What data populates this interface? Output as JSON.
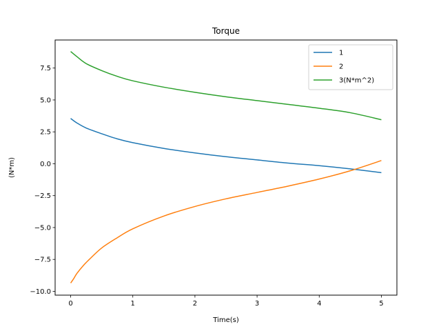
{
  "chart_data": {
    "type": "line",
    "title": "Torque",
    "xlabel": "Time(s)",
    "ylabel": "(N*m)",
    "xlim": [
      -0.25,
      5.25
    ],
    "ylim": [
      -10.3,
      9.7
    ],
    "xticks": [
      0,
      1,
      2,
      3,
      4,
      5
    ],
    "xtick_labels": [
      "0",
      "1",
      "2",
      "3",
      "4",
      "5"
    ],
    "yticks": [
      -10.0,
      -7.5,
      -5.0,
      -2.5,
      0.0,
      2.5,
      5.0,
      7.5
    ],
    "ytick_labels": [
      "−10.0",
      "−7.5",
      "−5.0",
      "−2.5",
      "0.0",
      "2.5",
      "5.0",
      "7.5"
    ],
    "grid": false,
    "legend_position": "top-right",
    "series": [
      {
        "name": "1",
        "color": "#1f77b4",
        "x": [
          0,
          0.1,
          0.25,
          0.5,
          0.75,
          1.0,
          1.5,
          2.0,
          2.5,
          3.0,
          3.5,
          4.0,
          4.5,
          5.0
        ],
        "y": [
          3.55,
          3.2,
          2.8,
          2.35,
          1.95,
          1.65,
          1.2,
          0.85,
          0.55,
          0.3,
          0.05,
          -0.15,
          -0.4,
          -0.7
        ]
      },
      {
        "name": "2",
        "color": "#ff7f0e",
        "x": [
          0,
          0.05,
          0.1,
          0.2,
          0.3,
          0.5,
          0.75,
          1.0,
          1.5,
          2.0,
          2.5,
          3.0,
          3.5,
          4.0,
          4.5,
          5.0
        ],
        "y": [
          -9.35,
          -9.0,
          -8.6,
          -8.0,
          -7.5,
          -6.6,
          -5.8,
          -5.1,
          -4.1,
          -3.35,
          -2.75,
          -2.25,
          -1.75,
          -1.2,
          -0.55,
          0.25
        ]
      },
      {
        "name": "3(N*m^2)",
        "color": "#2ca02c",
        "x": [
          0,
          0.1,
          0.25,
          0.5,
          0.75,
          1.0,
          1.5,
          2.0,
          2.5,
          3.0,
          3.5,
          4.0,
          4.5,
          5.0
        ],
        "y": [
          8.8,
          8.4,
          7.85,
          7.3,
          6.85,
          6.5,
          6.0,
          5.6,
          5.25,
          4.95,
          4.65,
          4.35,
          4.0,
          3.45
        ]
      }
    ]
  }
}
